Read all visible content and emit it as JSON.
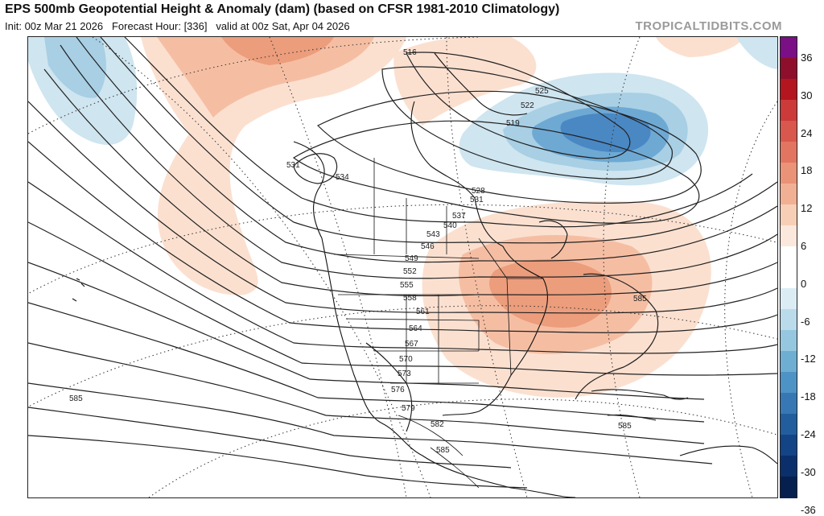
{
  "header": {
    "title": "EPS 500mb Geopotential Height & Anomaly (dam) (based on CFSR 1981-2010 Climatology)",
    "init": "Init: 00z Mar 21 2026",
    "forecast_hour": "Forecast Hour: [336]",
    "valid": "valid at 00z Sat, Apr 04 2026",
    "credit": "TROPICALTIDBITS.COM"
  },
  "colorbar": {
    "labels": [
      "36",
      "30",
      "24",
      "18",
      "12",
      "6",
      "0",
      "-6",
      "-12",
      "-18",
      "-24",
      "-30",
      "-36"
    ],
    "colors": [
      "#7a0f86",
      "#8e0f2b",
      "#b3161f",
      "#cc3a3a",
      "#d8584d",
      "#e27560",
      "#ea9376",
      "#f1b093",
      "#f7cfb6",
      "#fbe8dc",
      "#ffffff",
      "#ffffff",
      "#dbecf4",
      "#b9dbea",
      "#95c7e0",
      "#6faed3",
      "#4e93c5",
      "#3778b4",
      "#225d9e",
      "#134486",
      "#0b2f6b",
      "#05204f"
    ]
  },
  "contours": {
    "labels": [
      "516",
      "519",
      "522",
      "525",
      "528",
      "531",
      "531",
      "534",
      "537",
      "540",
      "543",
      "546",
      "549",
      "552",
      "555",
      "558",
      "561",
      "564",
      "567",
      "570",
      "573",
      "576",
      "579",
      "582",
      "585",
      "585",
      "585",
      "585"
    ]
  },
  "anomaly_colors": {
    "positive_light": "#fbe0d0",
    "positive_mid": "#f5bea3",
    "positive_strong": "#ec9d7c",
    "negative_light": "#cfe5f0",
    "negative_mid": "#a8cfe4",
    "negative_strong": "#6ea9d4",
    "negative_core": "#4a88c4"
  }
}
